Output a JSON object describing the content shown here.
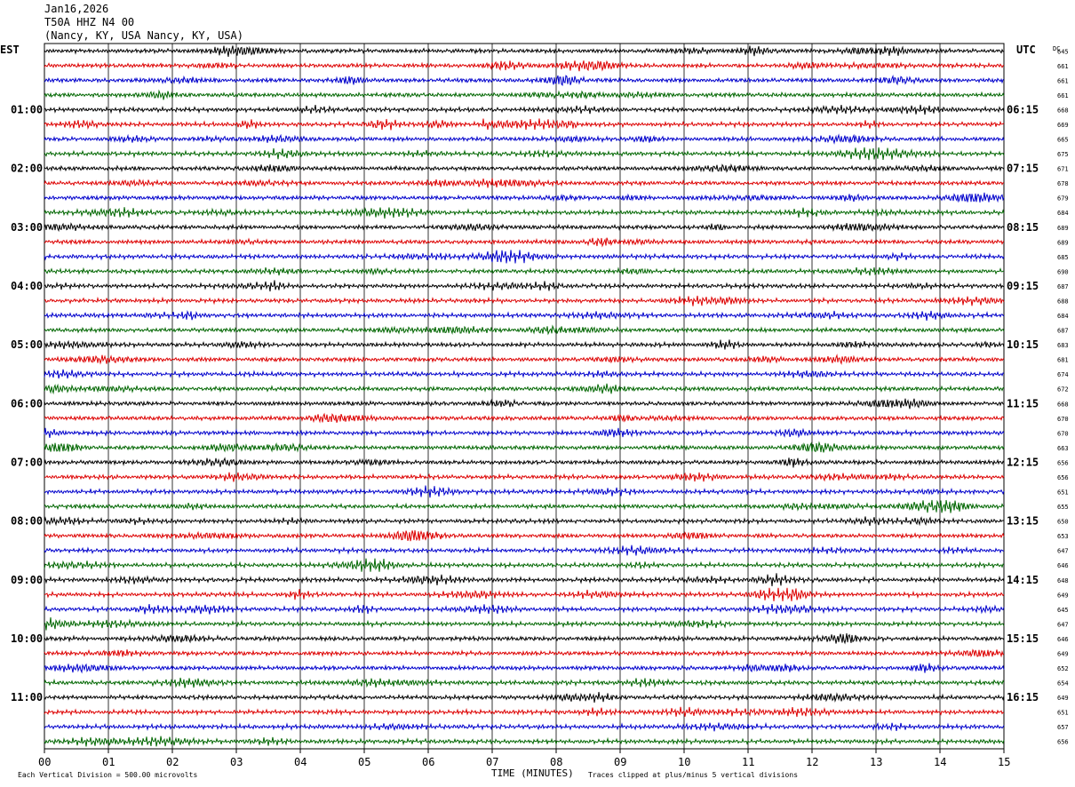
{
  "header": {
    "date": "Jan16,2026",
    "station": "T50A HHZ N4 00",
    "location": "(Nancy, KY, USA Nancy, KY, USA)"
  },
  "chart_data": {
    "type": "line",
    "title": "",
    "xlabel": "TIME (MINUTES)",
    "left_axis_label": "EST",
    "right_axis_label": "UTC",
    "dc_label": "DC",
    "x_ticks": [
      "00",
      "01",
      "02",
      "03",
      "04",
      "05",
      "06",
      "07",
      "08",
      "09",
      "10",
      "11",
      "12",
      "13",
      "14",
      "15"
    ],
    "xlim": [
      0,
      15
    ],
    "est_labels": [
      "01:00",
      "02:00",
      "03:00",
      "04:00",
      "05:00",
      "06:00",
      "07:00",
      "08:00",
      "09:00",
      "10:00",
      "11:00"
    ],
    "utc_labels": [
      "06:15",
      "07:15",
      "08:15",
      "09:15",
      "10:15",
      "11:15",
      "12:15",
      "13:15",
      "14:15",
      "15:15",
      "16:15"
    ],
    "trace_colors": [
      "#000000",
      "#dd0000",
      "#0000cc",
      "#006600"
    ],
    "dc_offsets": [
      645,
      661,
      661,
      661,
      668,
      669,
      665,
      675,
      671,
      678,
      679,
      684,
      689,
      689,
      685,
      690,
      687,
      688,
      684,
      687,
      683,
      681,
      674,
      672,
      668,
      670,
      670,
      663,
      656,
      656,
      651,
      655,
      650,
      653,
      647,
      646,
      648,
      649,
      645,
      647,
      646,
      649,
      652,
      654,
      649,
      651,
      657,
      656
    ],
    "grid": true,
    "footer_left": "Each Vertical Division = 500.00 microvolts",
    "footer_right": "Traces clipped at plus/minus 5 vertical divisions"
  }
}
